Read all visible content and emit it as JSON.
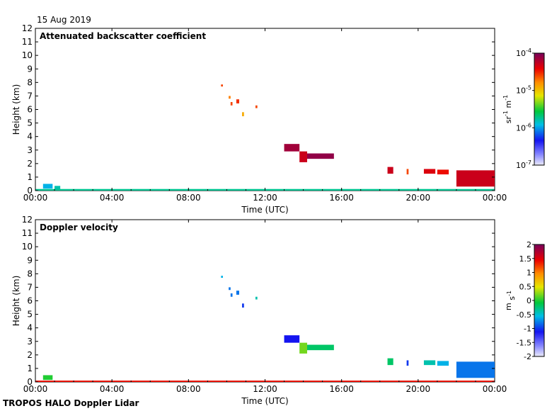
{
  "date": "15 Aug 2019",
  "footer": "TROPOS HALO Doppler Lidar",
  "chart_data": [
    {
      "type": "heatmap",
      "title": "Attenuated backscatter coefficient",
      "xlabel": "Time (UTC)",
      "ylabel": "Height (km)",
      "xlim": [
        0,
        24
      ],
      "ylim": [
        0,
        12
      ],
      "x_ticks": [
        "00:00",
        "04:00",
        "08:00",
        "12:00",
        "16:00",
        "20:00",
        "00:00"
      ],
      "y_ticks": [
        "0",
        "1",
        "2",
        "3",
        "4",
        "5",
        "6",
        "7",
        "8",
        "9",
        "10",
        "11",
        "12"
      ],
      "colorbar": {
        "label": "sr-1 m-1",
        "scale": "log",
        "range": [
          1e-07,
          0.0001
        ],
        "tick_labels": [
          {
            "mantissa": "10",
            "exp": "-4",
            "value": -4
          },
          {
            "mantissa": "10",
            "exp": "-5",
            "value": -5
          },
          {
            "mantissa": "10",
            "exp": "-6",
            "value": -6
          },
          {
            "mantissa": "10",
            "exp": "-7",
            "value": -7
          }
        ]
      },
      "features": [
        {
          "t0": 0.4,
          "t1": 0.9,
          "h0": 0.15,
          "h1": 0.5,
          "level": 0.35
        },
        {
          "t0": 1.0,
          "t1": 1.3,
          "h0": 0.1,
          "h1": 0.35,
          "level": 0.4
        },
        {
          "t0": 0.0,
          "t1": 24.0,
          "h0": 0.0,
          "h1": 0.12,
          "level": 0.42
        },
        {
          "t0": 9.7,
          "t1": 9.8,
          "h0": 7.7,
          "h1": 7.85,
          "level": 0.8
        },
        {
          "t0": 10.1,
          "t1": 10.2,
          "h0": 6.8,
          "h1": 7.0,
          "level": 0.75
        },
        {
          "t0": 10.2,
          "t1": 10.3,
          "h0": 6.3,
          "h1": 6.55,
          "level": 0.8
        },
        {
          "t0": 10.5,
          "t1": 10.65,
          "h0": 6.45,
          "h1": 6.75,
          "level": 0.82
        },
        {
          "t0": 10.8,
          "t1": 10.9,
          "h0": 5.5,
          "h1": 5.8,
          "level": 0.7
        },
        {
          "t0": 11.5,
          "t1": 11.6,
          "h0": 6.1,
          "h1": 6.3,
          "level": 0.8
        },
        {
          "t0": 13.0,
          "t1": 13.8,
          "h0": 2.9,
          "h1": 3.45,
          "level": 0.95
        },
        {
          "t0": 13.8,
          "t1": 14.2,
          "h0": 2.1,
          "h1": 2.9,
          "level": 0.9
        },
        {
          "t0": 14.2,
          "t1": 15.6,
          "h0": 2.35,
          "h1": 2.75,
          "level": 0.97
        },
        {
          "t0": 18.4,
          "t1": 18.7,
          "h0": 1.25,
          "h1": 1.75,
          "level": 0.9
        },
        {
          "t0": 19.4,
          "t1": 19.5,
          "h0": 1.2,
          "h1": 1.6,
          "level": 0.8
        },
        {
          "t0": 20.3,
          "t1": 20.9,
          "h0": 1.25,
          "h1": 1.6,
          "level": 0.88
        },
        {
          "t0": 21.0,
          "t1": 21.6,
          "h0": 1.2,
          "h1": 1.55,
          "level": 0.85
        },
        {
          "t0": 22.0,
          "t1": 24.0,
          "h0": 0.3,
          "h1": 1.5,
          "level": 0.9
        }
      ]
    },
    {
      "type": "heatmap",
      "title": "Doppler velocity",
      "xlabel": "Time (UTC)",
      "ylabel": "Height (km)",
      "xlim": [
        0,
        24
      ],
      "ylim": [
        0,
        12
      ],
      "x_ticks": [
        "00:00",
        "04:00",
        "08:00",
        "12:00",
        "16:00",
        "20:00",
        "00:00"
      ],
      "y_ticks": [
        "0",
        "1",
        "2",
        "3",
        "4",
        "5",
        "6",
        "7",
        "8",
        "9",
        "10",
        "11",
        "12"
      ],
      "colorbar": {
        "label": "m s-1",
        "scale": "linear",
        "range": [
          -2,
          2
        ],
        "tick_labels": [
          {
            "text": "2",
            "value": 2
          },
          {
            "text": "1.5",
            "value": 1.5
          },
          {
            "text": "1",
            "value": 1
          },
          {
            "text": "0.5",
            "value": 0.5
          },
          {
            "text": "0",
            "value": 0
          },
          {
            "text": "-0.5",
            "value": -0.5
          },
          {
            "text": "-1",
            "value": -1
          },
          {
            "text": "-1.5",
            "value": -1.5
          },
          {
            "text": "-2",
            "value": -2
          }
        ]
      },
      "features": [
        {
          "t0": 0.4,
          "t1": 0.9,
          "h0": 0.15,
          "h1": 0.5,
          "level": 0.5
        },
        {
          "t0": 0.0,
          "t1": 24.0,
          "h0": 0.0,
          "h1": 0.1,
          "level": 0.85
        },
        {
          "t0": 9.7,
          "t1": 9.8,
          "h0": 7.7,
          "h1": 7.85,
          "level": 0.35
        },
        {
          "t0": 10.1,
          "t1": 10.2,
          "h0": 6.8,
          "h1": 7.0,
          "level": 0.3
        },
        {
          "t0": 10.2,
          "t1": 10.3,
          "h0": 6.3,
          "h1": 6.55,
          "level": 0.3
        },
        {
          "t0": 10.5,
          "t1": 10.65,
          "h0": 6.45,
          "h1": 6.75,
          "level": 0.3
        },
        {
          "t0": 10.8,
          "t1": 10.9,
          "h0": 5.5,
          "h1": 5.8,
          "level": 0.25
        },
        {
          "t0": 11.5,
          "t1": 11.6,
          "h0": 6.1,
          "h1": 6.3,
          "level": 0.4
        },
        {
          "t0": 13.0,
          "t1": 13.8,
          "h0": 2.9,
          "h1": 3.45,
          "level": 0.22
        },
        {
          "t0": 13.8,
          "t1": 14.2,
          "h0": 2.1,
          "h1": 2.9,
          "level": 0.55
        },
        {
          "t0": 14.2,
          "t1": 15.6,
          "h0": 2.35,
          "h1": 2.75,
          "level": 0.45
        },
        {
          "t0": 18.4,
          "t1": 18.7,
          "h0": 1.25,
          "h1": 1.75,
          "level": 0.45
        },
        {
          "t0": 19.4,
          "t1": 19.5,
          "h0": 1.2,
          "h1": 1.6,
          "level": 0.25
        },
        {
          "t0": 20.3,
          "t1": 20.9,
          "h0": 1.25,
          "h1": 1.6,
          "level": 0.4
        },
        {
          "t0": 21.0,
          "t1": 21.6,
          "h0": 1.2,
          "h1": 1.55,
          "level": 0.35
        },
        {
          "t0": 22.0,
          "t1": 24.0,
          "h0": 0.3,
          "h1": 1.5,
          "level": 0.3
        }
      ]
    }
  ]
}
